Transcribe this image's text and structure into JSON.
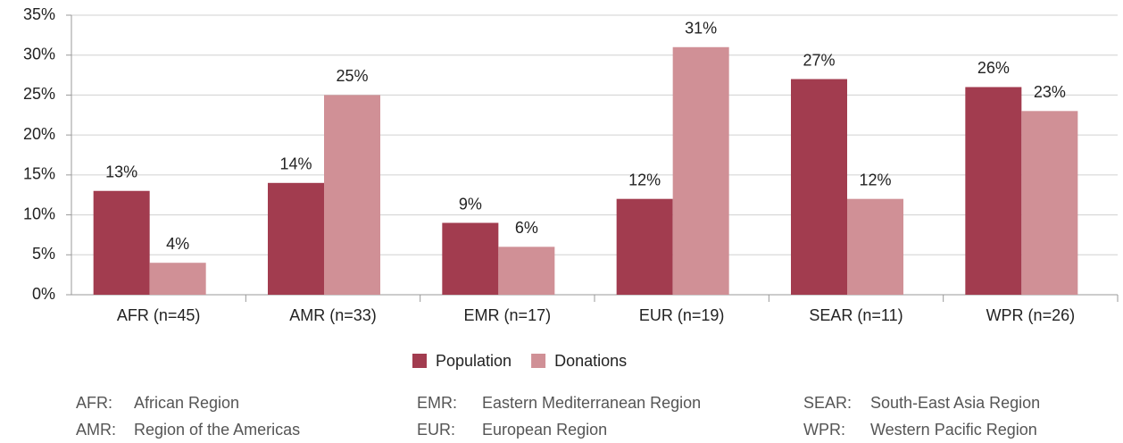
{
  "chart_data": {
    "type": "bar",
    "categories": [
      "AFR (n=45)",
      "AMR (n=33)",
      "EMR (n=17)",
      "EUR (n=19)",
      "SEAR (n=11)",
      "WPR (n=26)"
    ],
    "series": [
      {
        "name": "Population",
        "color": "#a23c4f",
        "values": [
          13,
          14,
          9,
          12,
          27,
          26
        ],
        "value_labels": [
          "13%",
          "14%",
          "9%",
          "12%",
          "27%",
          "26%"
        ]
      },
      {
        "name": "Donations",
        "color": "#d09096",
        "values": [
          4,
          25,
          6,
          31,
          12,
          23
        ],
        "value_labels": [
          "4%",
          "25%",
          "6%",
          "31%",
          "12%",
          "23%"
        ]
      }
    ],
    "ylim": [
      0,
      35
    ],
    "yticks": [
      {
        "value": 0,
        "label": "0%"
      },
      {
        "value": 5,
        "label": "5%"
      },
      {
        "value": 10,
        "label": "10%"
      },
      {
        "value": 15,
        "label": "15%"
      },
      {
        "value": 20,
        "label": "20%"
      },
      {
        "value": 25,
        "label": "25%"
      },
      {
        "value": 30,
        "label": "30%"
      },
      {
        "value": 35,
        "label": "35%"
      }
    ],
    "grid": true,
    "legend": "bottom",
    "footnotes": [
      {
        "abbr": "AFR:",
        "text": "African Region"
      },
      {
        "abbr": "AMR:",
        "text": "Region of the Americas"
      },
      {
        "abbr": "EMR:",
        "text": "Eastern Mediterranean Region"
      },
      {
        "abbr": "EUR:",
        "text": "European Region"
      },
      {
        "abbr": "SEAR:",
        "text": "South-East Asia Region"
      },
      {
        "abbr": "WPR:",
        "text": "Western Pacific Region"
      }
    ]
  }
}
